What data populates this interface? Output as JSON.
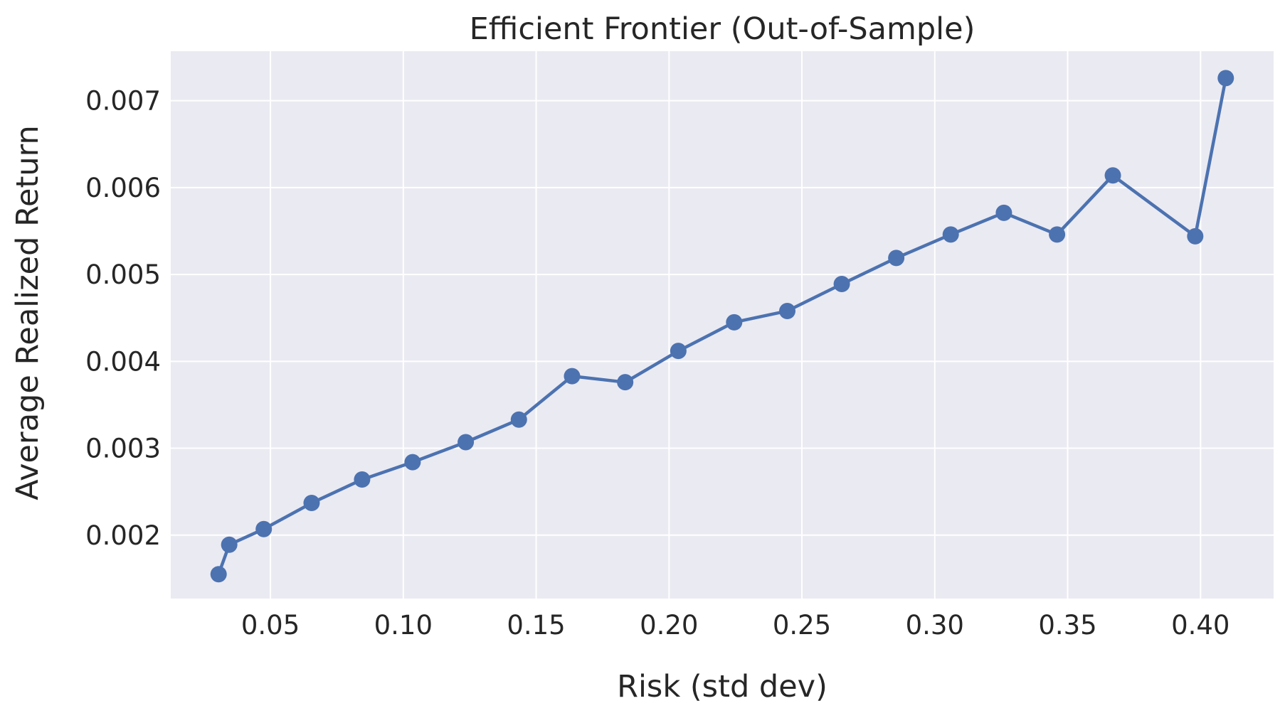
{
  "chart_data": {
    "type": "line",
    "title": "Efficient Frontier (Out-of-Sample)",
    "xlabel": "Risk (std dev)",
    "ylabel": "Average Realized Return",
    "xlim": [
      0.0125,
      0.4275
    ],
    "ylim": [
      0.00127,
      0.00757
    ],
    "x_ticks": [
      0.05,
      0.1,
      0.15,
      0.2,
      0.25,
      0.3,
      0.35,
      0.4
    ],
    "x_tick_labels": [
      "0.05",
      "0.10",
      "0.15",
      "0.20",
      "0.25",
      "0.30",
      "0.35",
      "0.40"
    ],
    "y_ticks": [
      0.002,
      0.003,
      0.004,
      0.005,
      0.006,
      0.007
    ],
    "y_tick_labels": [
      "0.002",
      "0.003",
      "0.004",
      "0.005",
      "0.006",
      "0.007"
    ],
    "grid": true,
    "colors": {
      "plot_background": "#eaeaf2",
      "grid": "#ffffff",
      "line": "#4c72b0",
      "text": "#262626"
    },
    "series": [
      {
        "x": [
          0.0305,
          0.0345,
          0.0475,
          0.0655,
          0.0845,
          0.1035,
          0.1235,
          0.1435,
          0.1635,
          0.1835,
          0.2035,
          0.2245,
          0.2445,
          0.265,
          0.2855,
          0.306,
          0.326,
          0.346,
          0.367,
          0.398,
          0.4095
        ],
        "y": [
          0.00155,
          0.00189,
          0.00207,
          0.00237,
          0.00264,
          0.00284,
          0.00307,
          0.00333,
          0.00383,
          0.00376,
          0.00412,
          0.00445,
          0.00458,
          0.00489,
          0.00519,
          0.00546,
          0.00571,
          0.00546,
          0.00614,
          0.00544,
          0.00726
        ]
      }
    ]
  }
}
